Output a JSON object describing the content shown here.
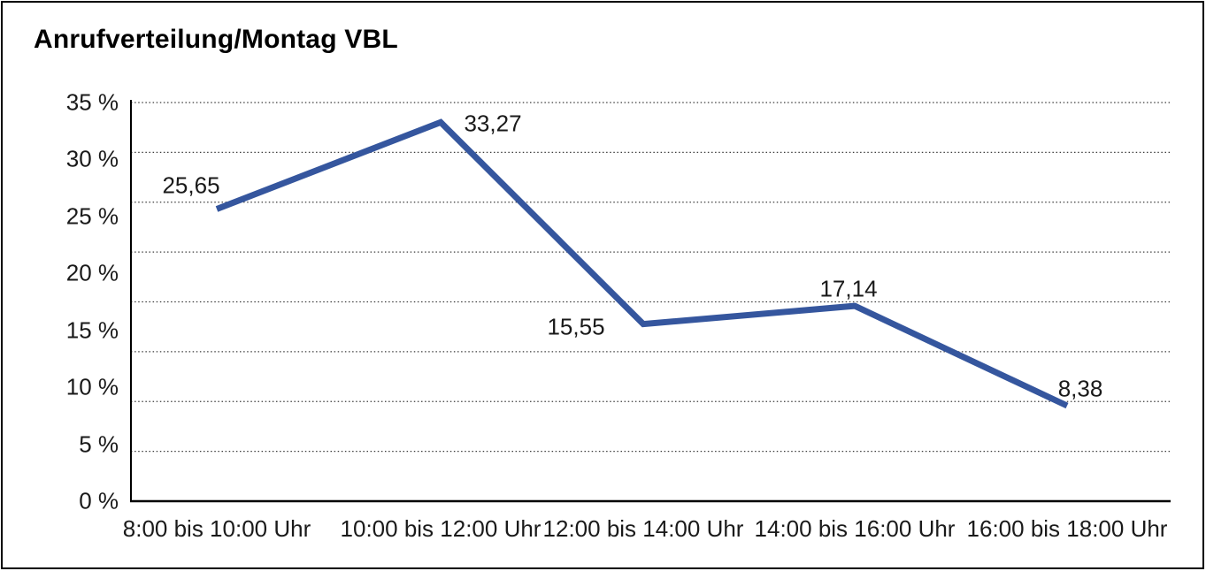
{
  "page": {
    "background": "#ffffff",
    "frame_border_color": "#000000"
  },
  "chart_data": {
    "type": "line",
    "title": "Anrufverteilung/Montag VBL",
    "categories": [
      "8:00 bis 10:00 Uhr",
      "10:00 bis 12:00 Uhr",
      "12:00 bis 14:00 Uhr",
      "14:00 bis 16:00 Uhr",
      "16:00 bis 18:00 Uhr"
    ],
    "values": [
      25.65,
      33.27,
      15.55,
      17.14,
      8.38
    ],
    "value_labels": [
      "25,65",
      "33,27",
      "15,55",
      "17,14",
      "8,38"
    ],
    "y_ticks": [
      "35 %",
      "30 %",
      "25 %",
      "20 %",
      "15 %",
      "10 %",
      "5 %",
      "0 %"
    ],
    "ylim": [
      0,
      35
    ],
    "y_tick_step": 5,
    "xlabel": "",
    "ylabel": "",
    "legend": "none",
    "grid": "dotted-horizontal",
    "line_color": "#35569E",
    "axis_color": "#000000",
    "grid_color": "#3c3c3c"
  }
}
